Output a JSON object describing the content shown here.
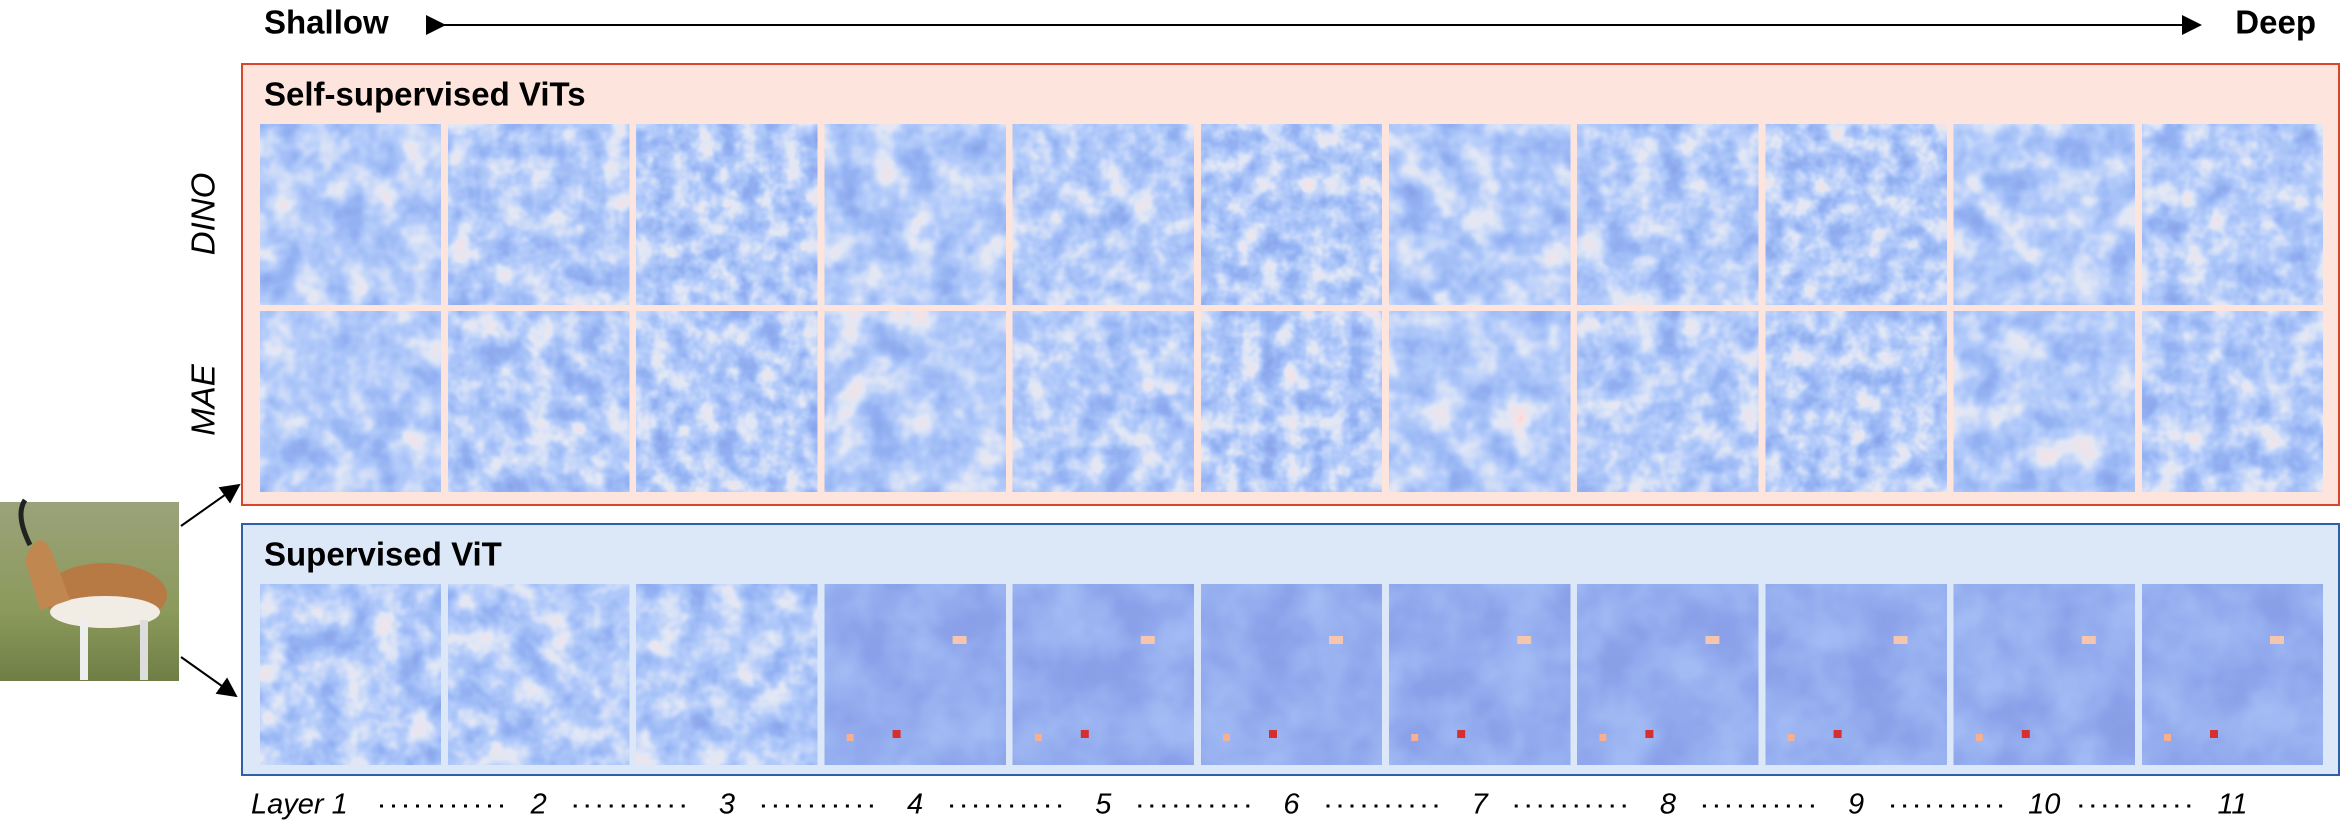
{
  "header": {
    "left": "Shallow",
    "right": "Deep"
  },
  "groups": [
    {
      "title": "Self-supervised ViTs",
      "rows": [
        "DINO",
        "MAE"
      ]
    },
    {
      "title": "Supervised ViT"
    }
  ],
  "layers": [
    "Layer 1",
    "2",
    "3",
    "4",
    "5",
    "6",
    "7",
    "8",
    "9",
    "10",
    "11"
  ]
}
